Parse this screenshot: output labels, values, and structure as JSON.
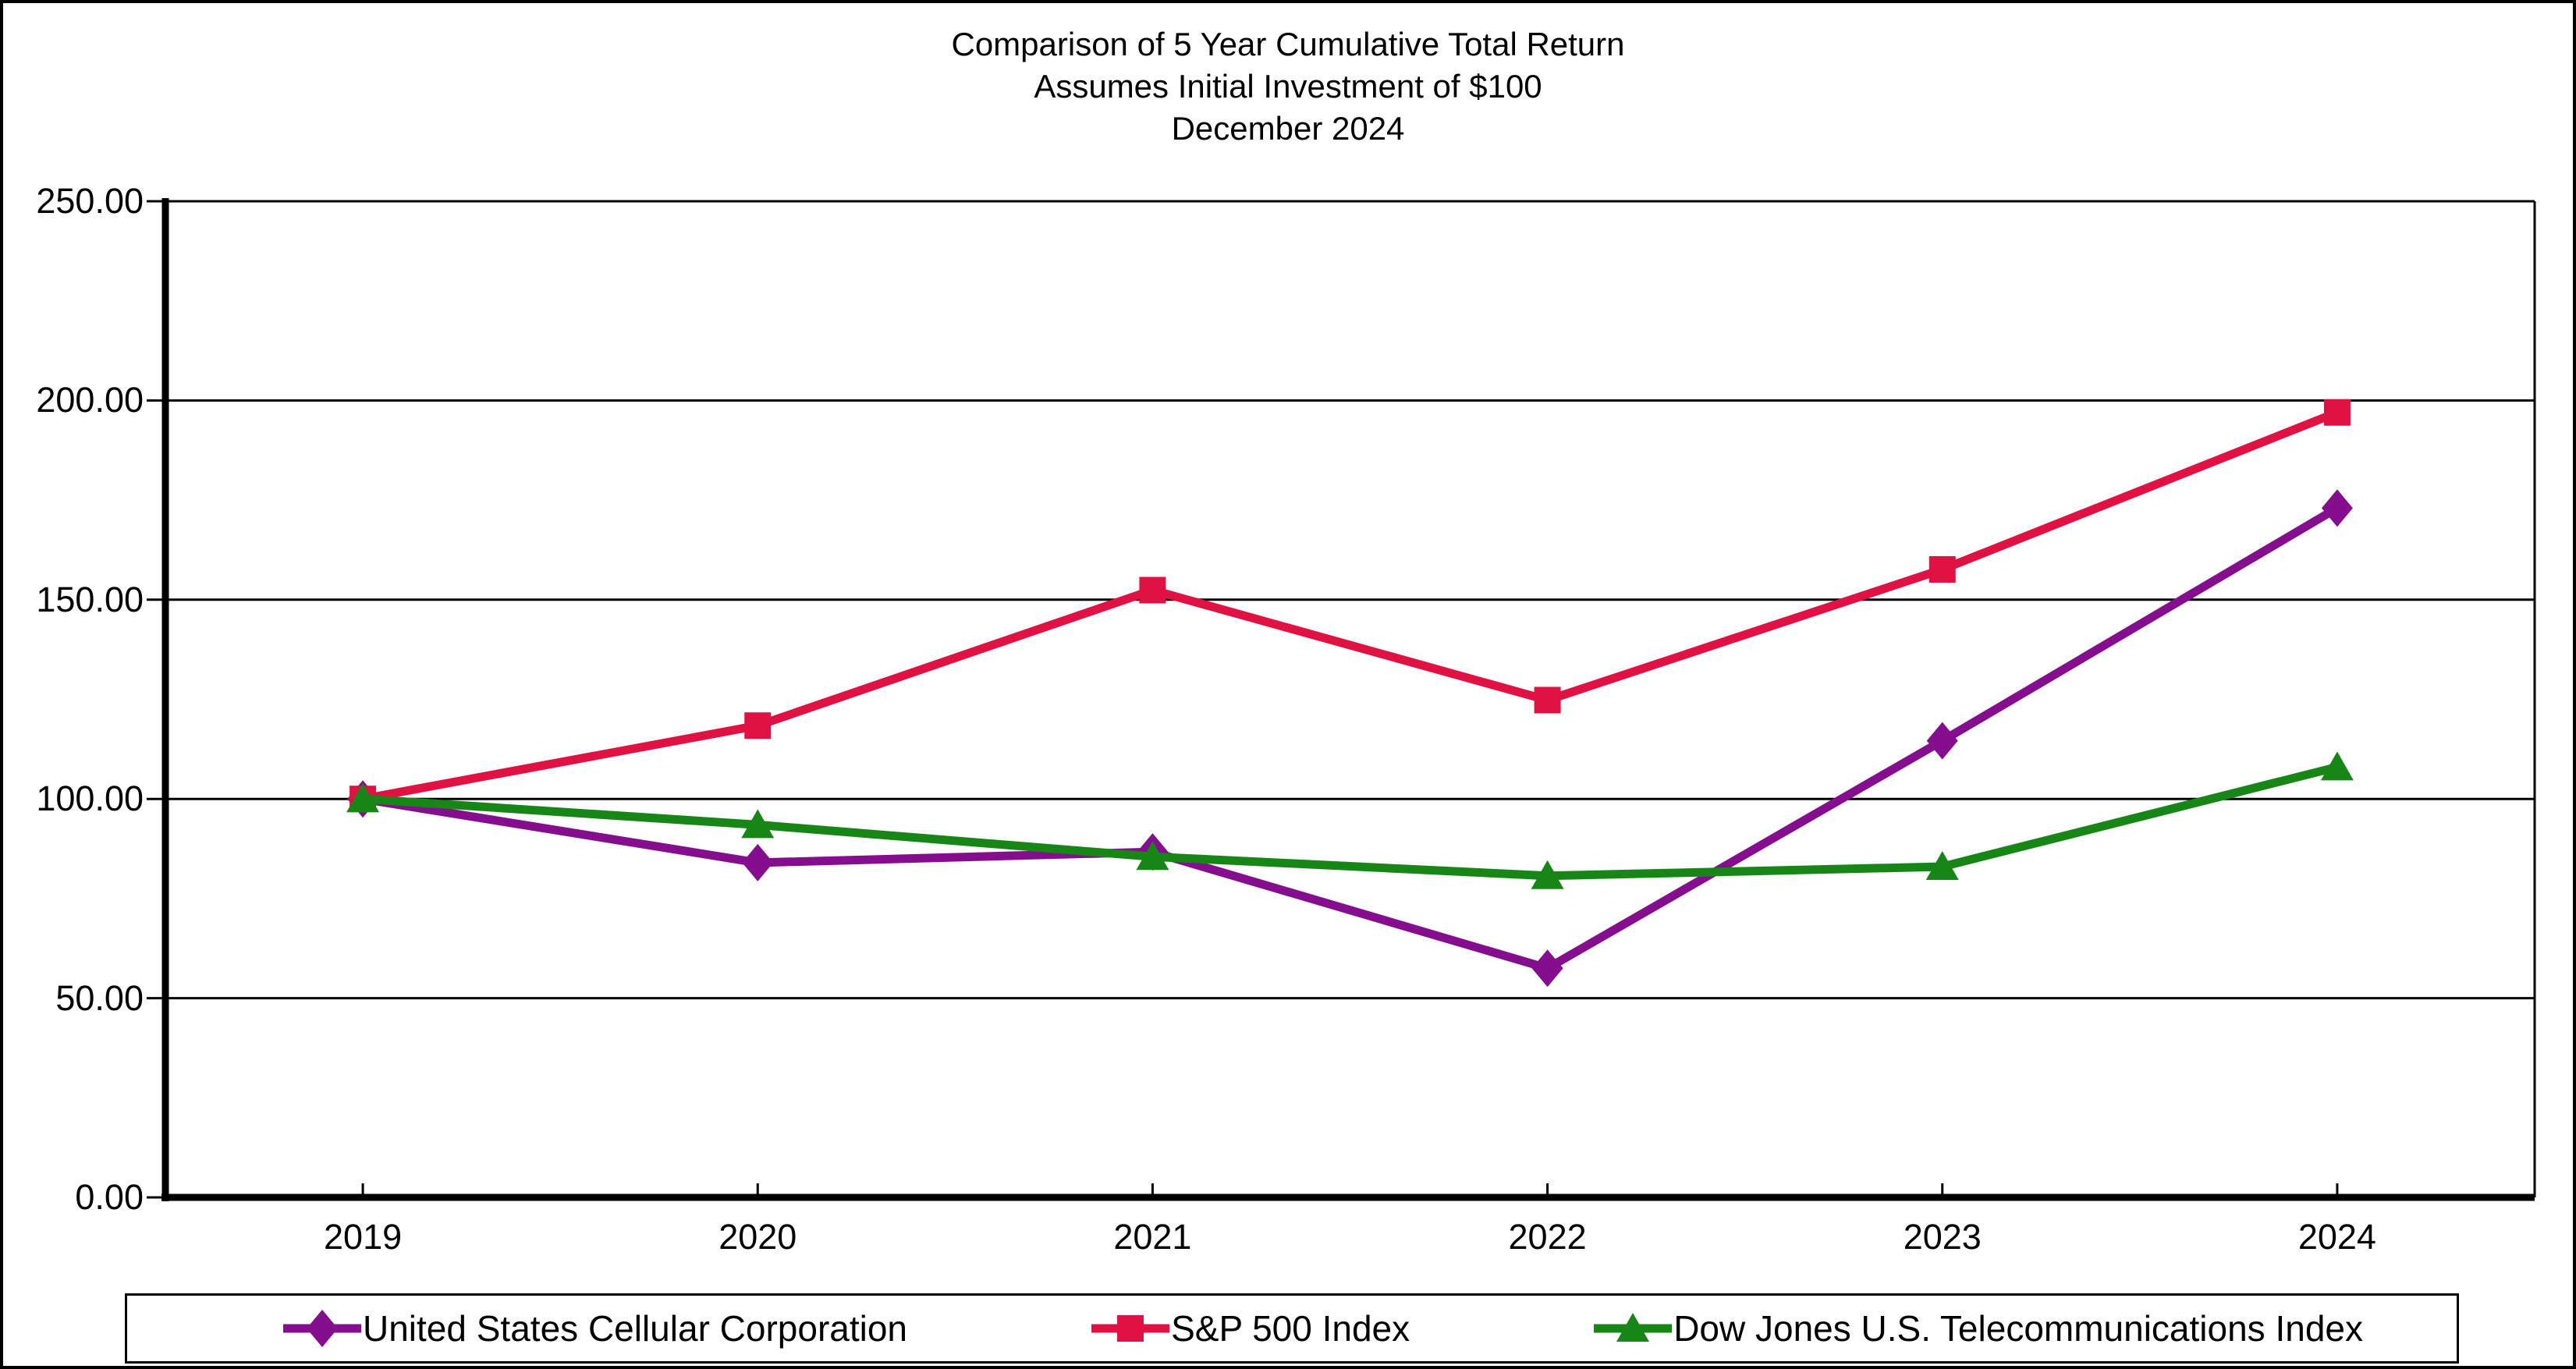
{
  "chart_data": {
    "type": "line",
    "title": "Comparison of 5 Year Cumulative Total Return",
    "subtitle": "Assumes Initial Investment of $100",
    "date_label": "December 2024",
    "x": [
      "2019",
      "2020",
      "2021",
      "2022",
      "2023",
      "2024"
    ],
    "series": [
      {
        "name": "United States Cellular Corporation",
        "marker": "diamond",
        "color": "#850E8F",
        "values": [
          100.0,
          84.0,
          86.7,
          57.5,
          114.6,
          173.0
        ]
      },
      {
        "name": "S&P 500 Index",
        "marker": "square",
        "color": "#DF1243",
        "values": [
          100.0,
          118.4,
          152.4,
          124.8,
          157.6,
          197.0
        ]
      },
      {
        "name": "Dow Jones U.S. Telecommunications Index",
        "marker": "triangle",
        "color": "#188617",
        "values": [
          100.0,
          93.5,
          85.5,
          80.7,
          83.0,
          108.0
        ]
      }
    ],
    "ylim": [
      0,
      250
    ],
    "ytick_step": 50,
    "ytick_labels": [
      "250.00",
      "200.00",
      "150.00",
      "100.00",
      "50.00",
      "0.00"
    ],
    "grid": true,
    "gridline_color": "#000000",
    "axis_color": "#000000",
    "legend_position": "bottom"
  }
}
